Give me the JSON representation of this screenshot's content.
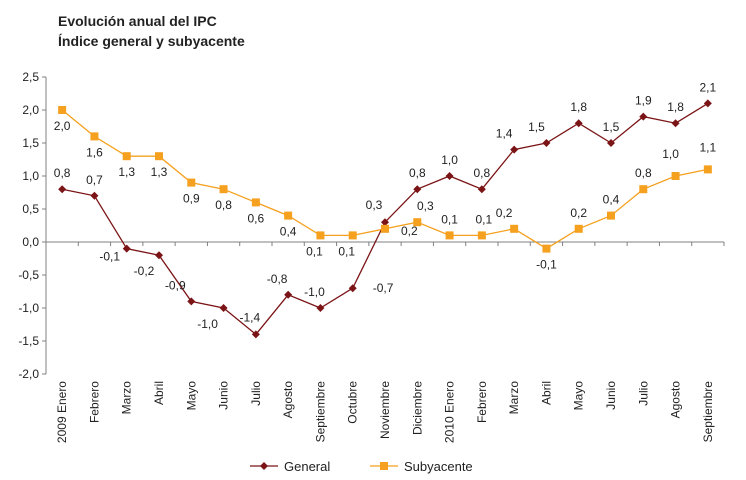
{
  "chart_data": {
    "type": "line",
    "title": "Evolución anual del IPC",
    "subtitle": "Índice general y subyacente",
    "categories": [
      "2009 Enero",
      "Febrero",
      "Marzo",
      "Abril",
      "Mayo",
      "Junio",
      "Julio",
      "Agosto",
      "Septiembre",
      "Octubre",
      "Noviembre",
      "Diciembre",
      "2010 Enero",
      "Febrero",
      "Marzo",
      "Abril",
      "Mayo",
      "Junio",
      "Julio",
      "Agosto",
      "Septiembre"
    ],
    "ylim": [
      -2.0,
      2.5
    ],
    "yticks": [
      "-2,0",
      "-1,5",
      "-1,0",
      "-0,5",
      "0,0",
      "0,5",
      "1,0",
      "1,5",
      "2,0",
      "2,5"
    ],
    "ytick_values": [
      -2.0,
      -1.5,
      -1.0,
      -0.5,
      0.0,
      0.5,
      1.0,
      1.5,
      2.0,
      2.5
    ],
    "grid": false,
    "legend_position": "bottom",
    "series": [
      {
        "name": "General",
        "color": "#7B1416",
        "marker": "diamond",
        "values": [
          0.8,
          0.7,
          -0.1,
          -0.2,
          -0.9,
          -1.0,
          -1.4,
          -0.8,
          -1.0,
          -0.7,
          0.3,
          0.8,
          1.0,
          0.8,
          1.4,
          1.5,
          1.8,
          1.5,
          1.9,
          1.8,
          2.1
        ],
        "labels": [
          "0,8",
          "0,7",
          "-0,1",
          "-0,2",
          "-0,9",
          "-1,0",
          "-1,4",
          "-0,8",
          "-1,0",
          "-0,7",
          "0,3",
          "0,8",
          "1,0",
          "0,8",
          "1,4",
          "1,5",
          "1,8",
          "1,5",
          "1,9",
          "1,8",
          "2,1"
        ]
      },
      {
        "name": "Subyacente",
        "color": "#F5A01E",
        "marker": "square",
        "values": [
          2.0,
          1.6,
          1.3,
          1.3,
          0.9,
          0.8,
          0.6,
          0.4,
          0.1,
          0.1,
          0.2,
          0.3,
          0.1,
          0.1,
          0.2,
          -0.1,
          0.2,
          0.4,
          0.8,
          1.0,
          1.1
        ],
        "labels": [
          "2,0",
          "1,6",
          "1,3",
          "1,3",
          "0,9",
          "0,8",
          "0,6",
          "0,4",
          "0,1",
          "0,1",
          "0,2",
          "0,3",
          "0,1",
          "0,1",
          "0,2",
          "-0,1",
          "0,2",
          "0,4",
          "0,8",
          "1,0",
          "1,1"
        ]
      }
    ]
  }
}
